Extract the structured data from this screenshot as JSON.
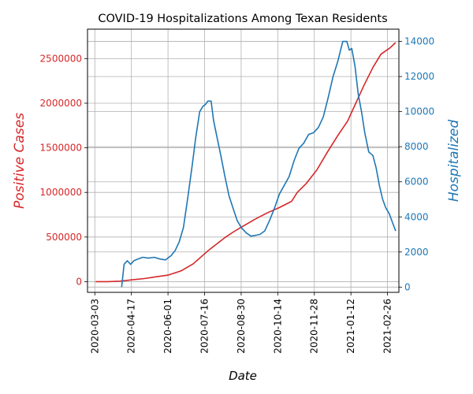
{
  "chart_data": {
    "type": "line",
    "title": "COVID-19 Hospitalizations Among Texan Residents",
    "xlabel": "Date",
    "ylabel_left": "Positive Cases",
    "ylabel_right": "Hospitalized",
    "x_ticks": [
      "2020-03-03",
      "2020-04-17",
      "2020-06-01",
      "2020-07-16",
      "2020-08-30",
      "2020-10-14",
      "2020-11-28",
      "2021-01-12",
      "2021-02-26"
    ],
    "xlim": [
      "2020-02-23",
      "2021-03-12"
    ],
    "ylim_left": [
      -120000,
      2830000
    ],
    "ylim_right": [
      -300,
      14700
    ],
    "yticks_left": [
      0,
      500000,
      1000000,
      1500000,
      2000000,
      2500000
    ],
    "yticks_right": [
      0,
      2000,
      4000,
      6000,
      8000,
      10000,
      12000,
      14000
    ],
    "grid": true,
    "colors": {
      "left": "#d62728",
      "right": "#1f77b4"
    },
    "series": [
      {
        "axis": "left",
        "x": [
          "2020-03-04",
          "2020-03-19",
          "2020-04-03",
          "2020-04-18",
          "2020-05-03",
          "2020-05-18",
          "2020-06-02",
          "2020-06-17",
          "2020-07-02",
          "2020-07-12",
          "2020-07-22",
          "2020-08-01",
          "2020-08-11",
          "2020-08-21",
          "2020-09-01",
          "2020-09-16",
          "2020-10-01",
          "2020-10-16",
          "2020-10-31",
          "2020-11-07",
          "2020-11-18",
          "2020-12-01",
          "2020-12-14",
          "2020-12-27",
          "2021-01-08",
          "2021-01-18",
          "2021-01-28",
          "2021-02-08",
          "2021-02-18",
          "2021-03-01",
          "2021-03-08"
        ],
        "values": [
          0,
          0,
          5000,
          20000,
          35000,
          55000,
          75000,
          120000,
          200000,
          280000,
          360000,
          430000,
          500000,
          560000,
          620000,
          700000,
          770000,
          830000,
          900000,
          1000000,
          1100000,
          1250000,
          1450000,
          1640000,
          1800000,
          2000000,
          2200000,
          2400000,
          2550000,
          2620000,
          2680000
        ]
      },
      {
        "axis": "right",
        "x": [
          "2020-04-05",
          "2020-04-08",
          "2020-04-12",
          "2020-04-16",
          "2020-04-20",
          "2020-04-25",
          "2020-05-01",
          "2020-05-08",
          "2020-05-15",
          "2020-05-22",
          "2020-05-29",
          "2020-06-05",
          "2020-06-10",
          "2020-06-15",
          "2020-06-20",
          "2020-06-25",
          "2020-07-01",
          "2020-07-05",
          "2020-07-10",
          "2020-07-14",
          "2020-07-17",
          "2020-07-20",
          "2020-07-24",
          "2020-07-27",
          "2020-07-31",
          "2020-08-05",
          "2020-08-10",
          "2020-08-15",
          "2020-08-20",
          "2020-08-25",
          "2020-08-30",
          "2020-09-05",
          "2020-09-11",
          "2020-09-17",
          "2020-09-22",
          "2020-09-28",
          "2020-10-04",
          "2020-10-10",
          "2020-10-16",
          "2020-10-22",
          "2020-10-28",
          "2020-11-03",
          "2020-11-09",
          "2020-11-15",
          "2020-11-21",
          "2020-11-27",
          "2020-12-03",
          "2020-12-09",
          "2020-12-15",
          "2020-12-21",
          "2020-12-27",
          "2021-01-02",
          "2021-01-07",
          "2021-01-10",
          "2021-01-13",
          "2021-01-17",
          "2021-01-21",
          "2021-01-25",
          "2021-01-29",
          "2021-02-03",
          "2021-02-08",
          "2021-02-12",
          "2021-02-16",
          "2021-02-20",
          "2021-02-24",
          "2021-02-28",
          "2021-03-04",
          "2021-03-08"
        ],
        "values": [
          0,
          1300,
          1500,
          1300,
          1500,
          1600,
          1700,
          1650,
          1700,
          1600,
          1550,
          1800,
          2100,
          2600,
          3400,
          5000,
          7000,
          8500,
          10000,
          10300,
          10400,
          10600,
          10600,
          9500,
          8600,
          7500,
          6300,
          5200,
          4500,
          3800,
          3400,
          3100,
          2900,
          2950,
          3000,
          3200,
          3800,
          4500,
          5300,
          5800,
          6300,
          7200,
          7900,
          8200,
          8700,
          8800,
          9100,
          9700,
          10800,
          12000,
          12900,
          14000,
          14000,
          13500,
          13600,
          12600,
          11000,
          10000,
          8800,
          7700,
          7500,
          6800,
          5800,
          5000,
          4500,
          4200,
          3700,
          3200
        ]
      }
    ]
  }
}
